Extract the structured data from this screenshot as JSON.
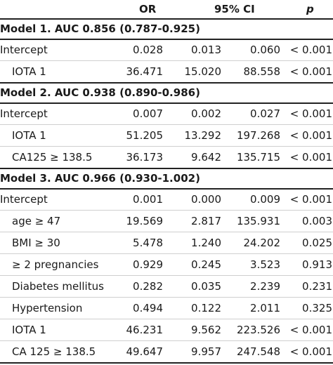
{
  "header": {
    "or": "OR",
    "ci": "95% CI",
    "p": "p"
  },
  "models": [
    {
      "title": "Model 1. AUC 0.856 (0.787-0.925)",
      "rows": [
        {
          "label": "Intercept",
          "or": "0.028",
          "ci_low": "0.013",
          "ci_high": "0.060",
          "p": "< 0.001"
        },
        {
          "label": "IOTA 1",
          "or": "36.471",
          "ci_low": "15.020",
          "ci_high": "88.558",
          "p": "< 0.001"
        }
      ]
    },
    {
      "title": "Model 2. AUC 0.938 (0.890-0.986)",
      "rows": [
        {
          "label": "Intercept",
          "or": "0.007",
          "ci_low": "0.002",
          "ci_high": "0.027",
          "p": "< 0.001"
        },
        {
          "label": "IOTA 1",
          "or": "51.205",
          "ci_low": "13.292",
          "ci_high": "197.268",
          "p": "< 0.001"
        },
        {
          "label": "CA125 ≥ 138.5",
          "or": "36.173",
          "ci_low": "9.642",
          "ci_high": "135.715",
          "p": "< 0.001"
        }
      ]
    },
    {
      "title": "Model 3. AUC 0.966 (0.930-1.002)",
      "rows": [
        {
          "label": "Intercept",
          "or": "0.001",
          "ci_low": "0.000",
          "ci_high": "0.009",
          "p": "< 0.001"
        },
        {
          "label": "age ≥ 47",
          "or": "19.569",
          "ci_low": "2.817",
          "ci_high": "135.931",
          "p": "0.003"
        },
        {
          "label": "BMI ≥ 30",
          "or": "5.478",
          "ci_low": "1.240",
          "ci_high": "24.202",
          "p": "0.025"
        },
        {
          "label": "≥ 2 pregnancies",
          "or": "0.929",
          "ci_low": "0.245",
          "ci_high": "3.523",
          "p": "0.913"
        },
        {
          "label": "Diabetes mellitus",
          "or": "0.282",
          "ci_low": "0.035",
          "ci_high": "2.239",
          "p": "0.231"
        },
        {
          "label": "Hypertension",
          "or": "0.494",
          "ci_low": "0.122",
          "ci_high": "2.011",
          "p": "0.325"
        },
        {
          "label": "IOTA 1",
          "or": "46.231",
          "ci_low": "9.562",
          "ci_high": "223.526",
          "p": "< 0.001"
        },
        {
          "label": "CA 125 ≥ 138.5",
          "or": "49.647",
          "ci_low": "9.957",
          "ci_high": "247.548",
          "p": "< 0.001"
        }
      ]
    }
  ]
}
